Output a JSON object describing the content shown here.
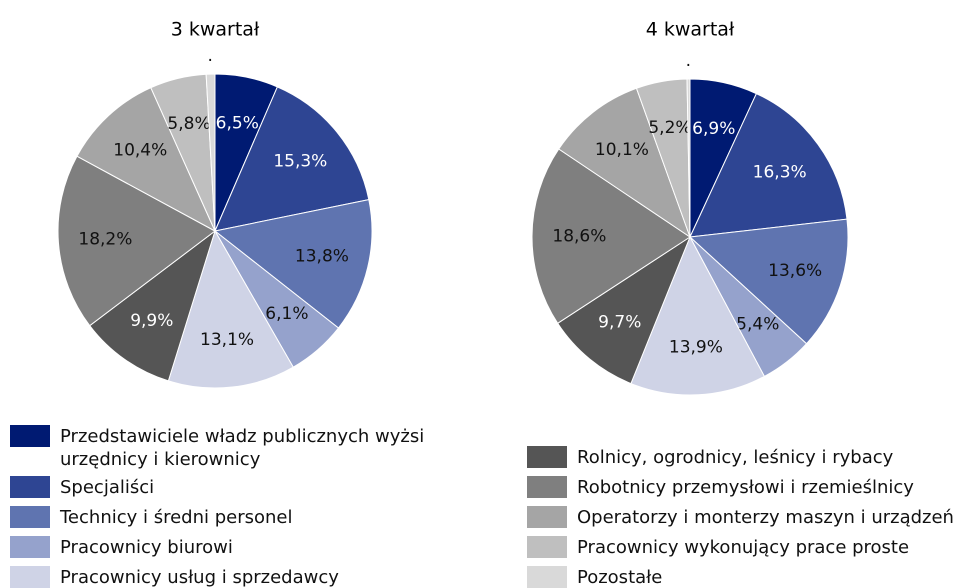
{
  "chart_data": [
    {
      "type": "pie",
      "title": "3 kwartał",
      "categories": [
        "Przedstawiciele władz publicznych wyżsi urzędnicy i kierownicy",
        "Specjaliści",
        "Technicy i średni personel",
        "Pracownicy biurowi",
        "Pracownicy usług i sprzedawcy",
        "Rolnicy, ogrodnicy, leśnicy i rybacy",
        "Robotnicy przemysłowi i rzemieślnicy",
        "Operatorzy i monterzy maszyn i urządzeń",
        "Pracownicy wykonujący prace proste",
        "Pozostałe"
      ],
      "values": [
        6.5,
        15.3,
        13.8,
        6.1,
        13.1,
        9.9,
        18.2,
        10.4,
        5.8,
        0.9
      ],
      "value_labels": [
        "6,5%",
        "15,3%",
        "13,8%",
        "6,1%",
        "13,1%",
        "9,9%",
        "18,2%",
        "10,4%",
        "5,8%",
        "."
      ],
      "colors": [
        "#001a72",
        "#2e4593",
        "#5f74b0",
        "#95a2cc",
        "#cfd3e6",
        "#555555",
        "#7f7f7f",
        "#a5a5a5",
        "#bfbfbf",
        "#d9d9d9"
      ]
    },
    {
      "type": "pie",
      "title": "4 kwartał",
      "categories": [
        "Przedstawiciele władz publicznych wyżsi urzędnicy i kierownicy",
        "Specjaliści",
        "Technicy i średni personel",
        "Pracownicy biurowi",
        "Pracownicy usług i sprzedawcy",
        "Rolnicy, ogrodnicy, leśnicy i rybacy",
        "Robotnicy przemysłowi i rzemieślnicy",
        "Operatorzy i monterzy maszyn i urządzeń",
        "Pracownicy wykonujący prace proste",
        "Pozostałe"
      ],
      "values": [
        6.9,
        16.3,
        13.6,
        5.4,
        13.9,
        9.7,
        18.6,
        10.1,
        5.2,
        0.3
      ],
      "value_labels": [
        "6,9%",
        "16,3%",
        "13,6%",
        "5,4%",
        "13,9%",
        "9,7%",
        "18,6%",
        "10,1%",
        "5,2%",
        "."
      ],
      "colors": [
        "#001a72",
        "#2e4593",
        "#5f74b0",
        "#95a2cc",
        "#cfd3e6",
        "#555555",
        "#7f7f7f",
        "#a5a5a5",
        "#bfbfbf",
        "#d9d9d9"
      ]
    }
  ]
}
